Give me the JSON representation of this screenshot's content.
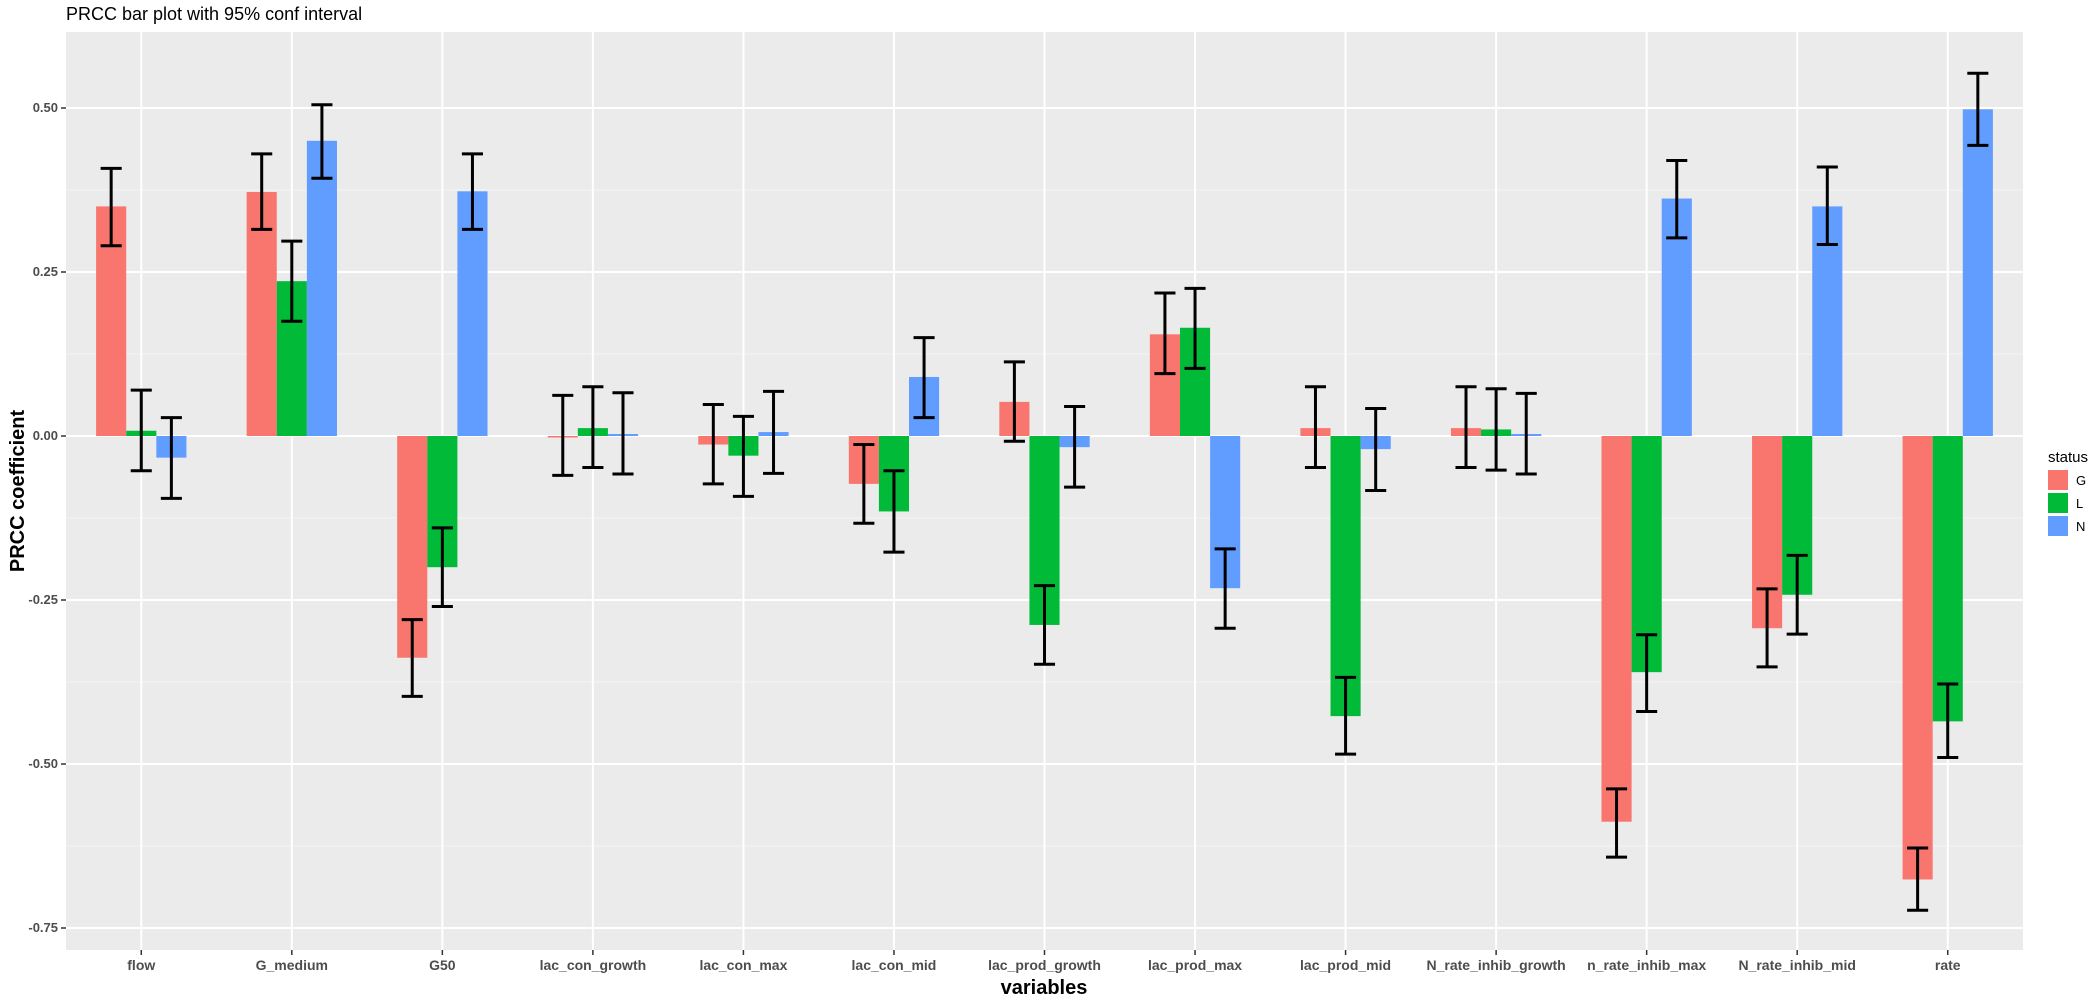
{
  "chart_data": {
    "type": "bar",
    "title": "PRCC bar plot with 95% conf interval",
    "xlabel": "variables",
    "ylabel": "PRCC coefficient",
    "ylim": [
      -0.8,
      0.6
    ],
    "yticks": [
      0.5,
      0.25,
      0.0,
      -0.25,
      -0.5,
      -0.75
    ],
    "ytick_labels": [
      "0.50",
      "0.25",
      "0.00",
      "-0.25",
      "-0.50",
      "-0.75"
    ],
    "grid": true,
    "legend_position": "right",
    "legend_title": "status",
    "categories": [
      "flow",
      "G_medium",
      "G50",
      "lac_con_growth",
      "lac_con_max",
      "lac_con_mid",
      "lac_prod_growth",
      "lac_prod_max",
      "lac_prod_mid",
      "N_rate_inhib_growth",
      "n_rate_inhib_max",
      "N_rate_inhib_mid",
      "rate"
    ],
    "series": [
      {
        "name": "G",
        "color": "#F8766D",
        "values": [
          0.35,
          0.372,
          -0.338,
          0.0,
          -0.013,
          -0.073,
          0.052,
          0.155,
          0.012,
          0.012,
          -0.588,
          -0.293,
          -0.676
        ],
        "error_low": [
          0.29,
          0.315,
          -0.397,
          -0.06,
          -0.073,
          -0.133,
          -0.008,
          0.095,
          -0.048,
          -0.048,
          -0.642,
          -0.352,
          -0.723
        ],
        "error_high": [
          0.408,
          0.43,
          -0.28,
          0.062,
          0.048,
          -0.013,
          0.113,
          0.218,
          0.075,
          0.075,
          -0.538,
          -0.233,
          -0.628
        ]
      },
      {
        "name": "L",
        "color": "#00BA38",
        "values": [
          0.008,
          0.236,
          -0.2,
          0.012,
          -0.03,
          -0.115,
          -0.288,
          0.165,
          -0.427,
          0.01,
          -0.36,
          -0.242,
          -0.435
        ],
        "error_low": [
          -0.053,
          0.175,
          -0.26,
          -0.048,
          -0.092,
          -0.177,
          -0.348,
          0.103,
          -0.485,
          -0.052,
          -0.42,
          -0.302,
          -0.49
        ],
        "error_high": [
          0.07,
          0.297,
          -0.14,
          0.075,
          0.03,
          -0.053,
          -0.228,
          0.225,
          -0.368,
          0.072,
          -0.303,
          -0.182,
          -0.378
        ]
      },
      {
        "name": "N",
        "color": "#619CFF",
        "values": [
          -0.033,
          0.45,
          0.373,
          0.003,
          0.006,
          0.09,
          -0.017,
          -0.232,
          -0.02,
          0.003,
          0.362,
          0.35,
          0.498
        ],
        "error_low": [
          -0.095,
          0.393,
          0.315,
          -0.058,
          -0.057,
          0.028,
          -0.078,
          -0.293,
          -0.083,
          -0.058,
          0.302,
          0.292,
          0.443
        ],
        "error_high": [
          0.028,
          0.505,
          0.43,
          0.066,
          0.068,
          0.15,
          0.045,
          -0.172,
          0.042,
          0.065,
          0.42,
          0.41,
          0.553
        ]
      }
    ]
  }
}
